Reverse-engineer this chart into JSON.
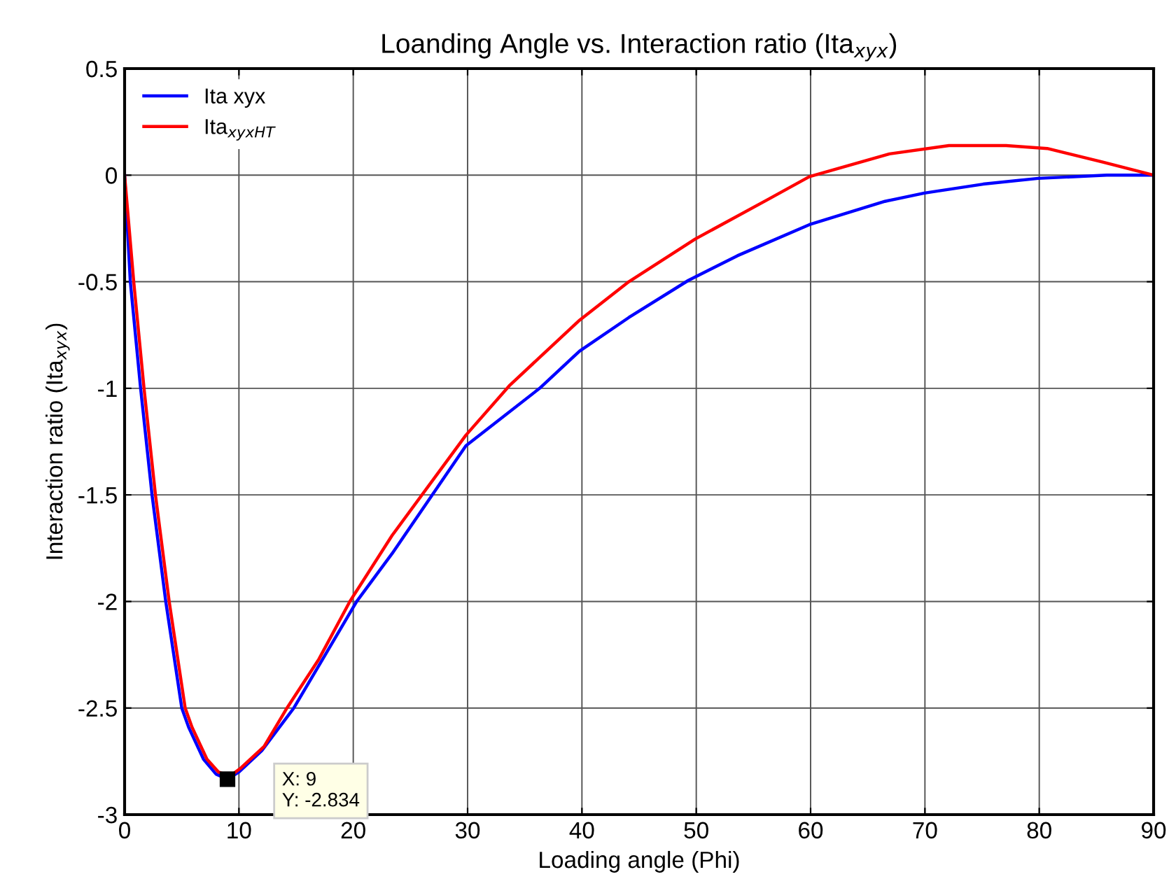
{
  "chart_data": {
    "type": "line",
    "title": "Loanding Angle vs. Interaction ratio (Ita$_{xyx}$)",
    "xlabel": "Loading angle (Phi)",
    "ylabel": "Interaction ratio (Ita$_{xyx}$)",
    "series": [
      {
        "name": "Ita xyx",
        "color": "#0000ff",
        "x": [
          0,
          0.5,
          1.4,
          2.4,
          3.6,
          5.0,
          5.6,
          6.9,
          8,
          9,
          10,
          12,
          14.8,
          17,
          20.3,
          23.4,
          29.85,
          36.3,
          39.8,
          44.1,
          49.3,
          53.6,
          59.9,
          66.5,
          69.95,
          75.1,
          79.9,
          85.9,
          90
        ],
        "values": [
          0,
          -0.5,
          -1,
          -1.5,
          -2,
          -2.5,
          -2.59,
          -2.74,
          -2.81,
          -2.834,
          -2.8,
          -2.7,
          -2.5,
          -2.3,
          -2,
          -1.775,
          -1.27,
          -1,
          -0.825,
          -0.668,
          -0.494,
          -0.378,
          -0.232,
          -0.123,
          -0.084,
          -0.042,
          -0.015,
          0,
          0
        ]
      },
      {
        "name": "Ita$_{xyxHT}$",
        "color": "#ff0000",
        "x": [
          0,
          0.8,
          1.7,
          2.7,
          3.9,
          5.3,
          5.9,
          7.2,
          8.2,
          9.2,
          10.2,
          12.2,
          14.2,
          17,
          19.7,
          23.4,
          29.85,
          33.7,
          39.8,
          44.1,
          49.9,
          56.2,
          59.9,
          66.9,
          72.1,
          77.1,
          80.7,
          85.5,
          90
        ],
        "values": [
          0,
          -0.5,
          -1,
          -1.5,
          -2,
          -2.5,
          -2.59,
          -2.74,
          -2.8,
          -2.82,
          -2.78,
          -2.68,
          -2.5,
          -2.27,
          -2,
          -1.69,
          -1.22,
          -0.985,
          -0.68,
          -0.5,
          -0.3,
          -0.116,
          -0.007,
          0.1,
          0.139,
          0.139,
          0.125,
          0.062,
          0
        ]
      }
    ],
    "xlim": [
      0,
      90
    ],
    "xticks": [
      0,
      10,
      20,
      30,
      40,
      50,
      60,
      70,
      80,
      90
    ],
    "ylim": [
      -3,
      0.5
    ],
    "yticks": [
      -3,
      -2.5,
      -2,
      -1.5,
      -1,
      -0.5,
      0,
      0.5
    ],
    "grid": true,
    "legend": "top left",
    "marker": "none",
    "line_style": "solid",
    "annotations": [
      {
        "text": "X: 9\nY: -2.834",
        "x": 9,
        "y": -2.834
      }
    ]
  }
}
